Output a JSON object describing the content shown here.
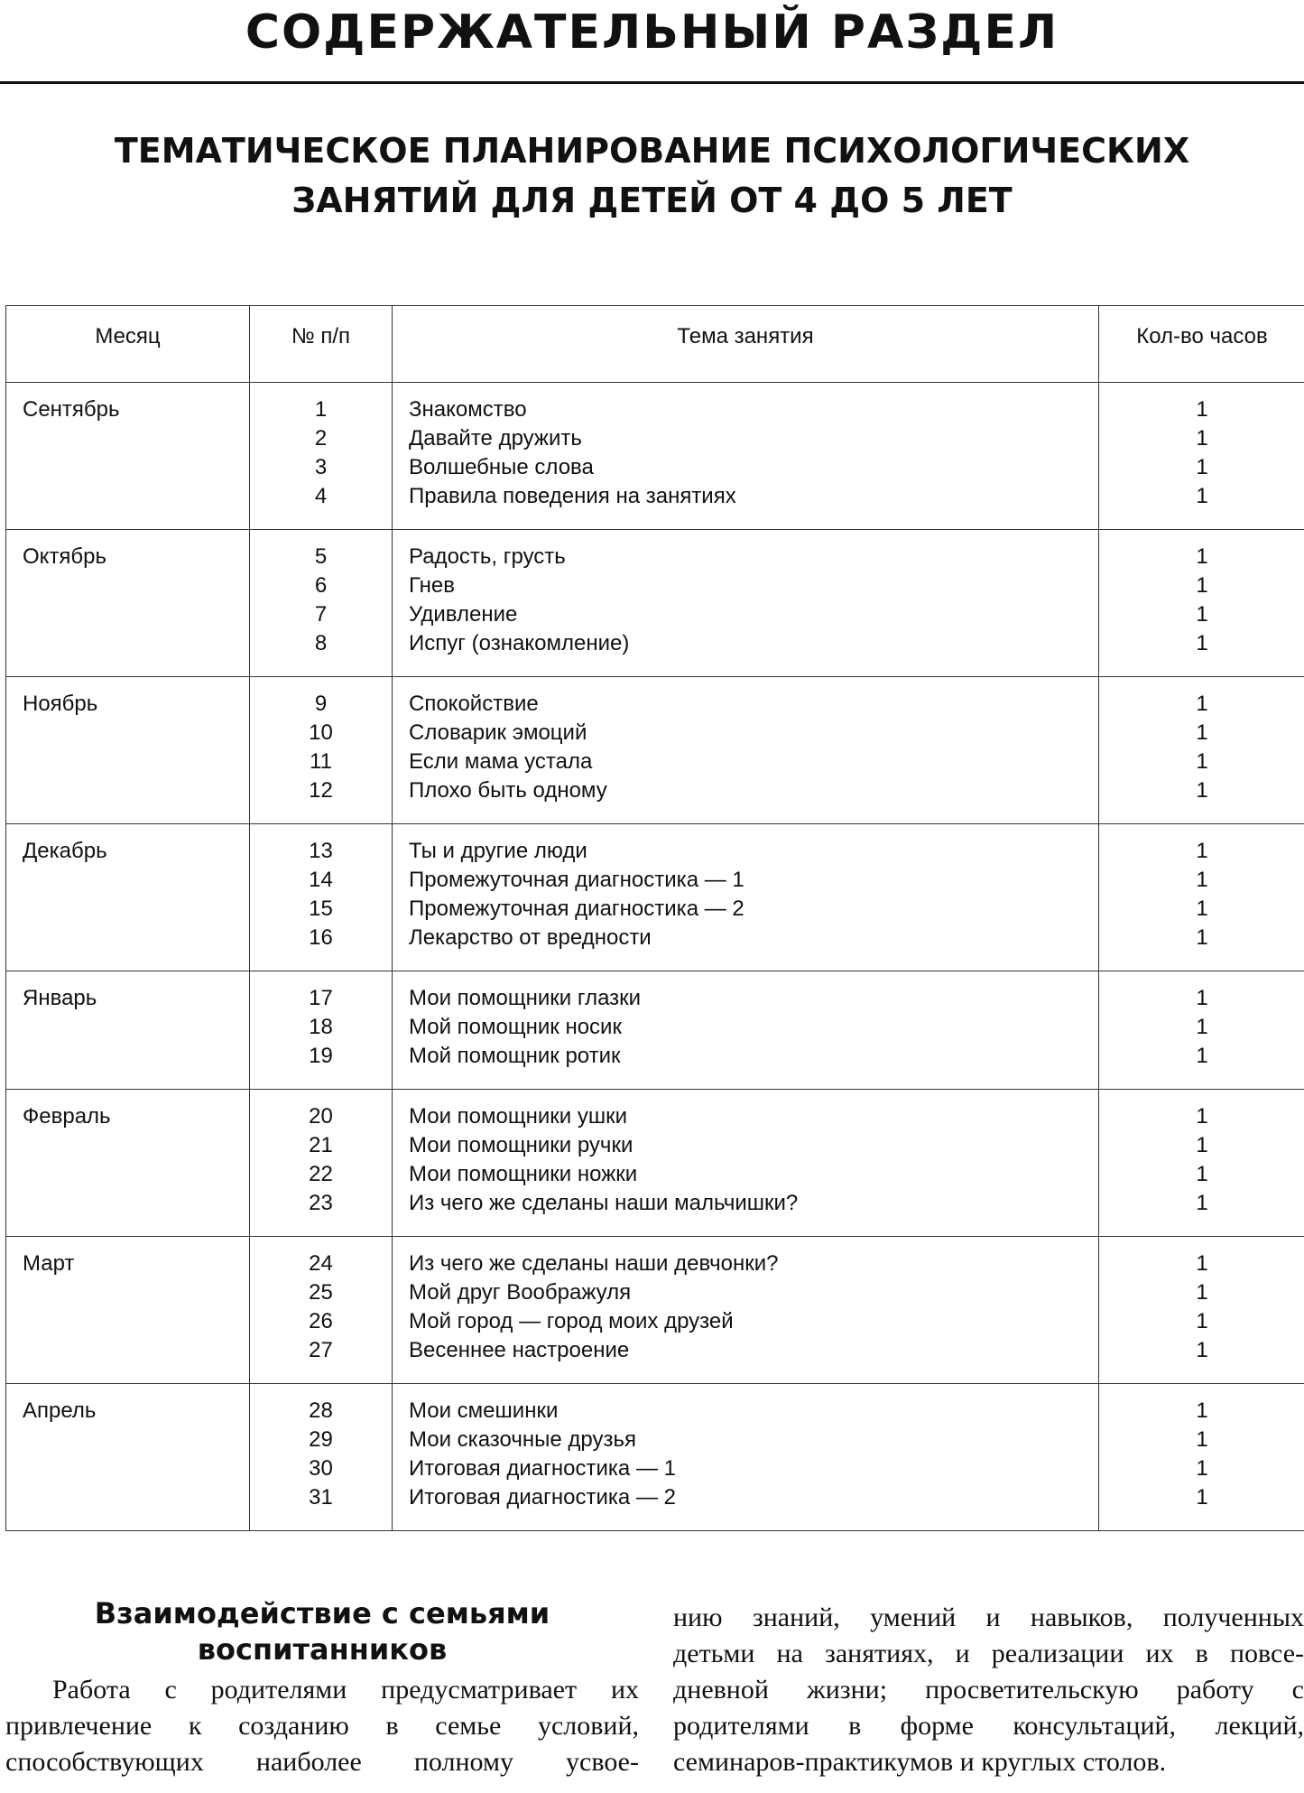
{
  "header": {
    "section": "СОДЕРЖАТЕЛЬНЫЙ РАЗДЕЛ",
    "title_lines": [
      "ТЕМАТИЧЕСКОЕ ПЛАНИРОВАНИЕ ПСИХОЛОГИЧЕСКИХ",
      "ЗАНЯТИЙ ДЛЯ ДЕТЕЙ ОТ 4 ДО 5 ЛЕТ"
    ]
  },
  "table": {
    "columns": [
      "Месяц",
      "№ п/п",
      "Тема занятия",
      "Кол-во часов"
    ],
    "groups": [
      {
        "month": "Сентябрь",
        "items": [
          [
            1,
            "Знакомство",
            1
          ],
          [
            2,
            "Давайте дружить",
            1
          ],
          [
            3,
            "Волшебные слова",
            1
          ],
          [
            4,
            "Правила поведения на занятиях",
            1
          ]
        ]
      },
      {
        "month": "Октябрь",
        "items": [
          [
            5,
            "Радость, грусть",
            1
          ],
          [
            6,
            "Гнев",
            1
          ],
          [
            7,
            "Удивление",
            1
          ],
          [
            8,
            "Испуг (ознакомление)",
            1
          ]
        ]
      },
      {
        "month": "Ноябрь",
        "items": [
          [
            9,
            "Спокойствие",
            1
          ],
          [
            10,
            "Словарик эмоций",
            1
          ],
          [
            11,
            "Если мама устала",
            1
          ],
          [
            12,
            "Плохо быть одному",
            1
          ]
        ]
      },
      {
        "month": "Декабрь",
        "items": [
          [
            13,
            "Ты и другие люди",
            1
          ],
          [
            14,
            "Промежуточная диагностика — 1",
            1
          ],
          [
            15,
            "Промежуточная диагностика — 2",
            1
          ],
          [
            16,
            "Лекарство от вредности",
            1
          ]
        ]
      },
      {
        "month": "Январь",
        "items": [
          [
            17,
            "Мои помощники глазки",
            1
          ],
          [
            18,
            "Мой помощник носик",
            1
          ],
          [
            19,
            "Мой помощник ротик",
            1
          ]
        ]
      },
      {
        "month": "Февраль",
        "items": [
          [
            20,
            "Мои помощники ушки",
            1
          ],
          [
            21,
            "Мои помощники ручки",
            1
          ],
          [
            22,
            "Мои помощники ножки",
            1
          ],
          [
            23,
            "Из чего же сделаны наши мальчишки?",
            1
          ]
        ]
      },
      {
        "month": "Март",
        "items": [
          [
            24,
            "Из чего же сделаны наши девчонки?",
            1
          ],
          [
            25,
            "Мой друг Воображуля",
            1
          ],
          [
            26,
            "Мой город — город моих друзей",
            1
          ],
          [
            27,
            "Весеннее настроение",
            1
          ]
        ]
      },
      {
        "month": "Апрель",
        "items": [
          [
            28,
            "Мои смешинки",
            1
          ],
          [
            29,
            "Мои сказочные друзья",
            1
          ],
          [
            30,
            "Итоговая диагностика — 1",
            1
          ],
          [
            31,
            "Итоговая диагностика — 2",
            1
          ]
        ]
      }
    ]
  },
  "article": {
    "heading_lines": [
      "Взаимодействие с семьями",
      "воспитанников"
    ],
    "left_lines": [
      "Работа с родителями предусматривает их",
      "привлечение к созданию в семье условий,",
      "способствующих наиболее полному усвое-"
    ],
    "right_lines": [
      "нию знаний, умений и навыков, полученных",
      "детьми на занятиях, и реализации их в повсе-",
      "дневной жизни; просветительскую работу с",
      "родителями в форме консультаций, лекций,",
      "семинаров-практикумов и круглых столов."
    ]
  }
}
